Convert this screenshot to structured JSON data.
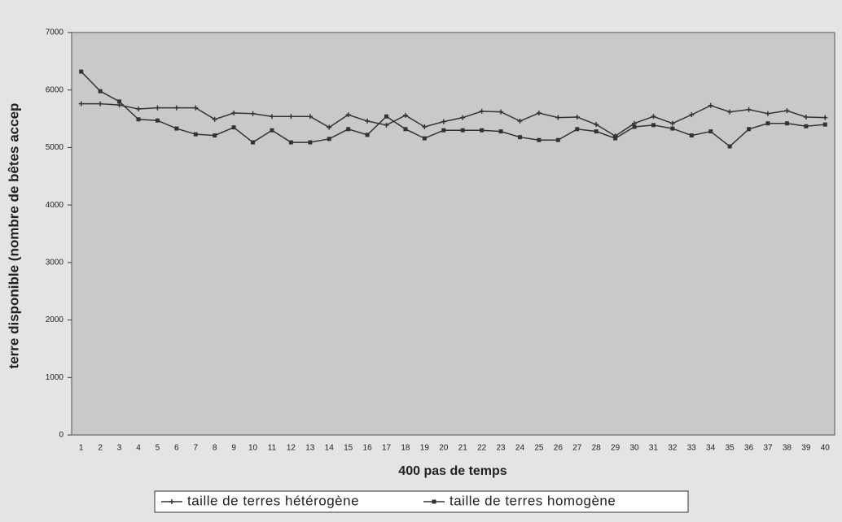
{
  "chart_data": {
    "type": "line",
    "ylabel": "terre disponible (nombre de bêtes accep",
    "xlabel": "400 pas de temps",
    "categories": [
      "1",
      "2",
      "3",
      "4",
      "5",
      "6",
      "7",
      "8",
      "9",
      "10",
      "11",
      "12",
      "13",
      "14",
      "15",
      "16",
      "17",
      "18",
      "19",
      "20",
      "21",
      "22",
      "23",
      "24",
      "25",
      "26",
      "27",
      "28",
      "29",
      "30",
      "31",
      "32",
      "33",
      "34",
      "35",
      "36",
      "37",
      "38",
      "39",
      "40"
    ],
    "series": [
      {
        "name": "taille de terres hétérogène",
        "color": "#333333",
        "marker": "plus",
        "values": [
          5760,
          5760,
          5740,
          5670,
          5690,
          5690,
          5690,
          5490,
          5600,
          5590,
          5540,
          5540,
          5540,
          5350,
          5570,
          5460,
          5390,
          5560,
          5360,
          5450,
          5520,
          5630,
          5620,
          5460,
          5600,
          5520,
          5530,
          5400,
          5200,
          5420,
          5540,
          5420,
          5570,
          5730,
          5620,
          5660,
          5590,
          5640,
          5530,
          5520
        ]
      },
      {
        "name": "taille de terres homogène",
        "color": "#333333",
        "marker": "square",
        "values": [
          6320,
          5980,
          5800,
          5490,
          5470,
          5330,
          5230,
          5210,
          5350,
          5090,
          5300,
          5090,
          5090,
          5150,
          5320,
          5220,
          5540,
          5320,
          5160,
          5300,
          5300,
          5300,
          5280,
          5180,
          5130,
          5130,
          5320,
          5280,
          5160,
          5360,
          5390,
          5330,
          5210,
          5280,
          5020,
          5320,
          5420,
          5420,
          5370,
          5400
        ]
      }
    ],
    "ylim": [
      0,
      7000
    ],
    "yticks": [
      0,
      1000,
      2000,
      3000,
      4000,
      5000,
      6000,
      7000
    ],
    "grid": false
  }
}
